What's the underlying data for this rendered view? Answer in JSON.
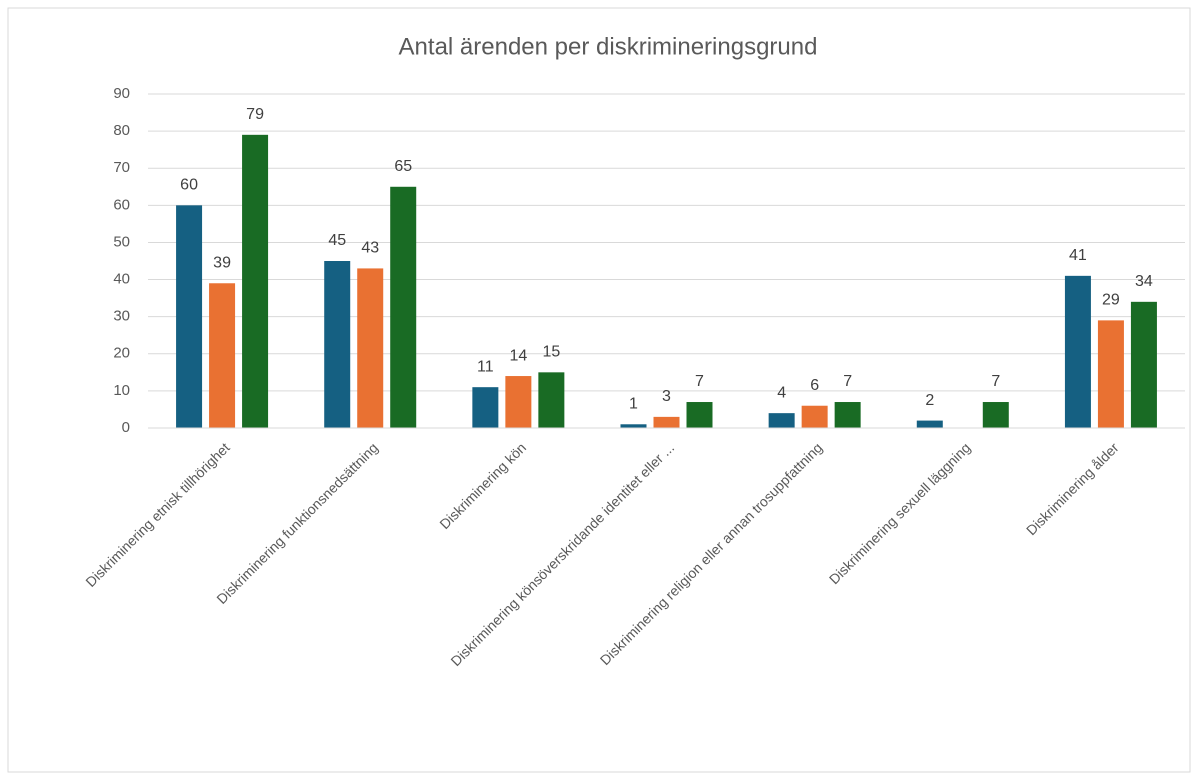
{
  "chart_data": {
    "type": "bar",
    "title": "Antal ärenden per diskrimineringsgrund",
    "categories": [
      "Diskriminering etnisk tillhörighet",
      "Diskriminering funktionsnedsättning",
      "Diskriminering kön",
      "Diskriminering könsöverskridande identitet eller ...",
      "Diskriminering religion eller annan trosuppfattning",
      "Diskriminering sexuell läggning",
      "Diskriminering ålder"
    ],
    "series": [
      {
        "color": "#156082",
        "values": [
          60,
          45,
          11,
          1,
          4,
          2,
          41
        ]
      },
      {
        "color": "#e97132",
        "values": [
          39,
          43,
          14,
          3,
          6,
          null,
          29
        ]
      },
      {
        "color": "#196b24",
        "values": [
          79,
          65,
          15,
          7,
          7,
          7,
          34
        ]
      }
    ],
    "ylim": [
      0,
      90
    ],
    "yticks": [
      0,
      10,
      20,
      30,
      40,
      50,
      60,
      70,
      80,
      90
    ],
    "grid": true
  }
}
